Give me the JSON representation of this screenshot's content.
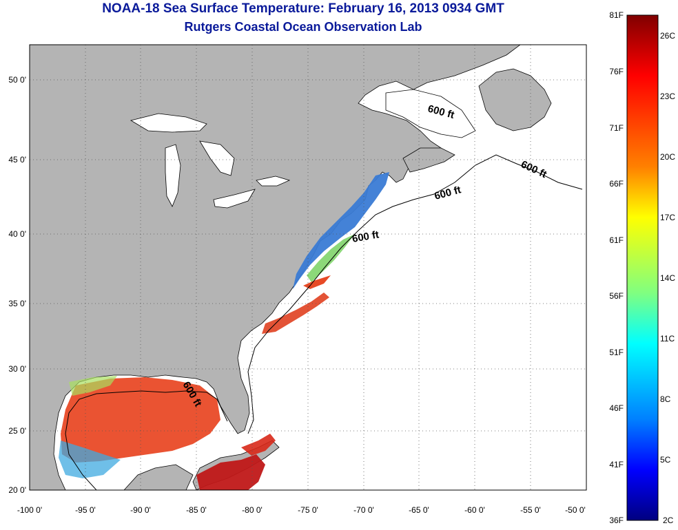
{
  "title": {
    "line1": "NOAA-18 Sea Surface Temperature:  February 16, 2013 0934 GMT",
    "line2": "Rutgers Coastal Ocean Observation Lab"
  },
  "map": {
    "lon_range": [
      -100,
      -50
    ],
    "lat_range": [
      20,
      52.5
    ],
    "x_ticks": [
      "-100 0'",
      "-95 0'",
      "-90 0'",
      "-85 0'",
      "-80 0'",
      "-75 0'",
      "-70 0'",
      "-65 0'",
      "-60 0'",
      "-55 0'",
      "-50 0'"
    ],
    "y_ticks": [
      "50 0'",
      "45 0'",
      "40 0'",
      "35 0'",
      "30 0'",
      "25 0'",
      "20 0'"
    ],
    "grid": "dotted",
    "land_color": "#b4b4b4",
    "ocean_color": "#ffffff",
    "contours": [
      "600 ft",
      "600 ft",
      "600 ft",
      "600 ft",
      "600 ft"
    ]
  },
  "colorbar": {
    "left_labels": [
      "81F",
      "76F",
      "71F",
      "66F",
      "61F",
      "56F",
      "51F",
      "46F",
      "41F",
      "36F"
    ],
    "right_labels": [
      "26C",
      "23C",
      "20C",
      "17C",
      "14C",
      "11C",
      "8C",
      "5C",
      "2C"
    ],
    "colors": [
      "#800000",
      "#ff0000",
      "#ff8000",
      "#ffff00",
      "#80ff80",
      "#00ffff",
      "#0080ff",
      "#0000ff",
      "#000080"
    ]
  }
}
